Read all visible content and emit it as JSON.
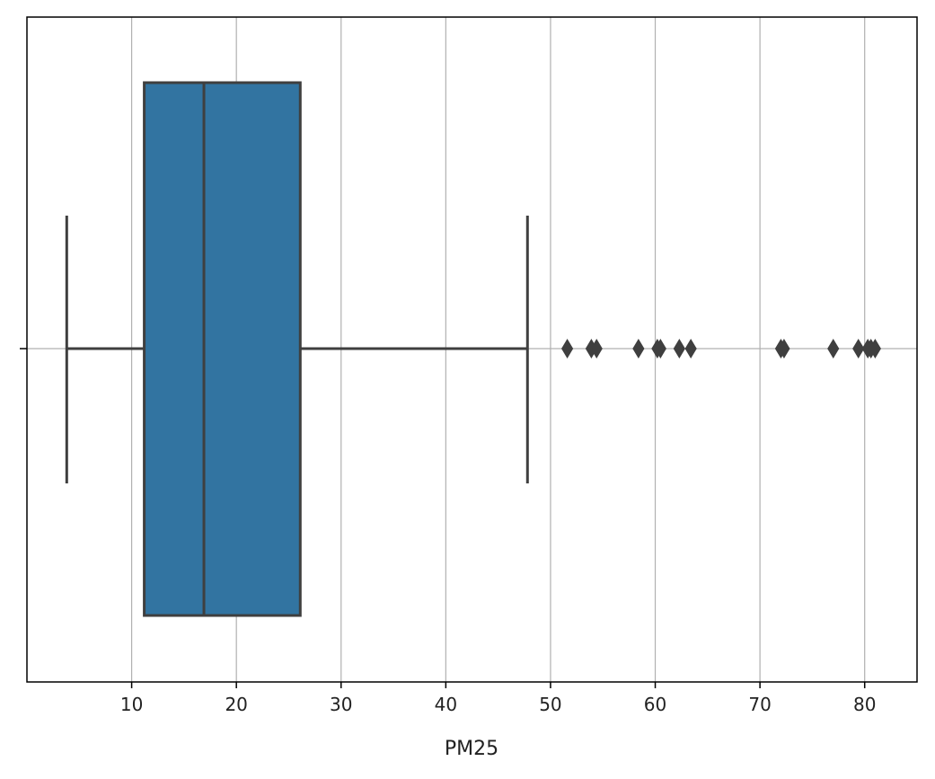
{
  "chart_data": {
    "type": "boxplot",
    "orientation": "horizontal",
    "title": "",
    "xlabel": "PM25",
    "ylabel": "",
    "xlim": [
      0,
      85
    ],
    "xticks": [
      10,
      20,
      30,
      40,
      50,
      60,
      70,
      80
    ],
    "grid": true,
    "box": {
      "whisker_low": 3.8,
      "q1": 11.2,
      "median": 16.9,
      "q3": 26.1,
      "whisker_high": 47.8,
      "outliers": [
        51.6,
        53.9,
        54.4,
        58.4,
        60.2,
        60.5,
        62.3,
        63.4,
        72.0,
        72.3,
        77.0,
        79.4,
        80.3,
        80.6,
        81.0
      ]
    },
    "colors": {
      "box_fill": "#3274a1",
      "box_edge": "#3f3f3f",
      "grid": "#b0b0b0",
      "axes": "#000000"
    }
  }
}
